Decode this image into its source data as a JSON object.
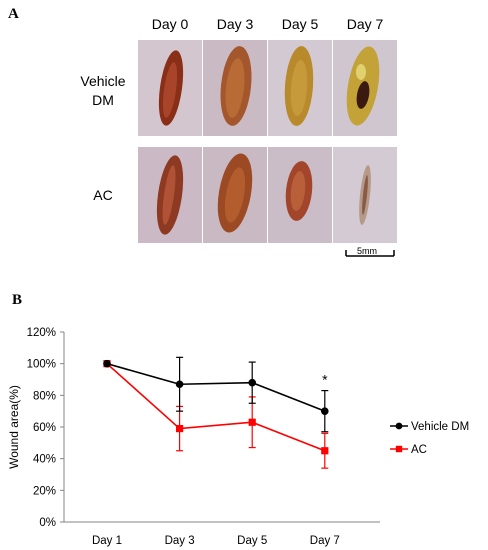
{
  "panel_a": {
    "letter": "A",
    "columns": [
      "Day 0",
      "Day 3",
      "Day 5",
      "Day 7"
    ],
    "rows": [
      {
        "label_line1": "Vehicle",
        "label_line2": "DM"
      },
      {
        "label_line1": "AC",
        "label_line2": ""
      }
    ],
    "scale_bar_label": "5mm"
  },
  "panel_b": {
    "letter": "B"
  },
  "chart_data": {
    "type": "line",
    "title": "",
    "xlabel": "",
    "ylabel": "Wound area(%)",
    "categories": [
      "Day 1",
      "Day 3",
      "Day 5",
      "Day 7"
    ],
    "ylim": [
      0,
      120
    ],
    "yticks": [
      "0%",
      "20%",
      "40%",
      "60%",
      "80%",
      "100%",
      "120%"
    ],
    "grid": false,
    "legend_position": "right",
    "series": [
      {
        "name": "Vehicle DM",
        "color": "#000000",
        "marker": "circle",
        "values": [
          100,
          87,
          88,
          70
        ],
        "errors": [
          0,
          17,
          13,
          13
        ]
      },
      {
        "name": "AC",
        "color": "#ff0000",
        "marker": "square",
        "values": [
          100,
          59,
          63,
          45
        ],
        "errors": [
          0,
          14,
          16,
          11
        ]
      }
    ],
    "annotations": [
      {
        "text": "*",
        "category": "Day 7",
        "series": "Vehicle DM"
      }
    ]
  }
}
